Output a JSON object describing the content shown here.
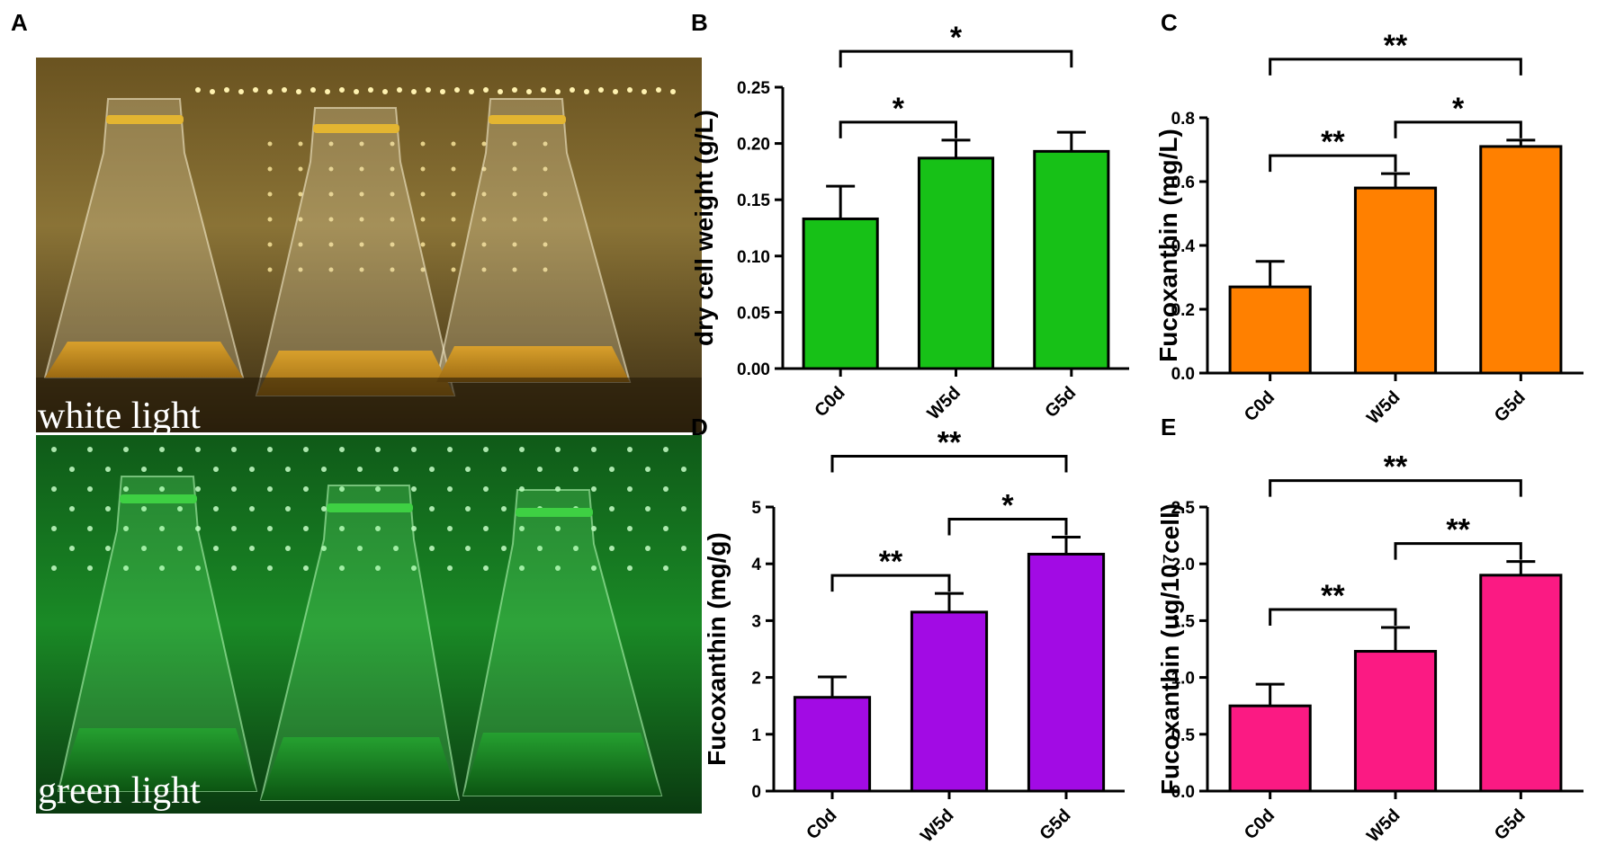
{
  "panels": {
    "A": {
      "letter": "A",
      "captions": {
        "top": "white light",
        "bottom": "green light"
      }
    }
  },
  "chart_data": [
    {
      "panel": "B",
      "type": "bar",
      "categories": [
        "C0d",
        "W5d",
        "G5d"
      ],
      "values": [
        0.133,
        0.187,
        0.193
      ],
      "errors": [
        0.029,
        0.016,
        0.017
      ],
      "color": "#17c117",
      "ylabel": "dry cell weight (g/L)",
      "ylim": [
        0,
        0.25
      ],
      "yticks": [
        0.0,
        0.05,
        0.1,
        0.15,
        0.2,
        0.25
      ],
      "ytick_labels": [
        "0.00",
        "0.05",
        "0.10",
        "0.15",
        "0.20",
        "0.25"
      ],
      "significance": [
        {
          "from": 0,
          "to": 1,
          "label": "*"
        },
        {
          "from": 0,
          "to": 2,
          "label": "*"
        }
      ]
    },
    {
      "panel": "C",
      "type": "bar",
      "categories": [
        "C0d",
        "W5d",
        "G5d"
      ],
      "values": [
        0.27,
        0.58,
        0.71
      ],
      "errors": [
        0.08,
        0.045,
        0.02
      ],
      "color": "#ff8000",
      "ylabel": "Fucoxanthin (mg/L)",
      "ylim": [
        0,
        0.8
      ],
      "yticks": [
        0.0,
        0.2,
        0.4,
        0.6,
        0.8
      ],
      "ytick_labels": [
        "0.0",
        "0.2",
        "0.4",
        "0.6",
        "0.8"
      ],
      "significance": [
        {
          "from": 0,
          "to": 1,
          "label": "**"
        },
        {
          "from": 1,
          "to": 2,
          "label": "*"
        },
        {
          "from": 0,
          "to": 2,
          "label": "**"
        }
      ]
    },
    {
      "panel": "D",
      "type": "bar",
      "categories": [
        "C0d",
        "W5d",
        "G5d"
      ],
      "values": [
        1.65,
        3.15,
        4.17
      ],
      "errors": [
        0.36,
        0.33,
        0.3
      ],
      "color": "#a20be4",
      "ylabel": "Fucoxanthin (mg/g)",
      "ylim": [
        0,
        5
      ],
      "yticks": [
        0,
        1,
        2,
        3,
        4,
        5
      ],
      "ytick_labels": [
        "0",
        "1",
        "2",
        "3",
        "4",
        "5"
      ],
      "significance": [
        {
          "from": 0,
          "to": 1,
          "label": "**"
        },
        {
          "from": 1,
          "to": 2,
          "label": "*"
        },
        {
          "from": 0,
          "to": 2,
          "label": "**"
        }
      ]
    },
    {
      "panel": "E",
      "type": "bar",
      "categories": [
        "C0d",
        "W5d",
        "G5d"
      ],
      "values": [
        0.75,
        1.23,
        1.9
      ],
      "errors": [
        0.19,
        0.21,
        0.12
      ],
      "color": "#fb1a83",
      "ylabel": "Fucoxanthin (ug/10⁷cell)",
      "ylim": [
        0,
        2.5
      ],
      "yticks": [
        0.0,
        0.5,
        1.0,
        1.5,
        2.0,
        2.5
      ],
      "ytick_labels": [
        "0.0",
        "0.5",
        "1.0",
        "1.5",
        "2.0",
        "2.5"
      ],
      "significance": [
        {
          "from": 0,
          "to": 1,
          "label": "**"
        },
        {
          "from": 1,
          "to": 2,
          "label": "**"
        },
        {
          "from": 0,
          "to": 2,
          "label": "**"
        }
      ]
    }
  ]
}
